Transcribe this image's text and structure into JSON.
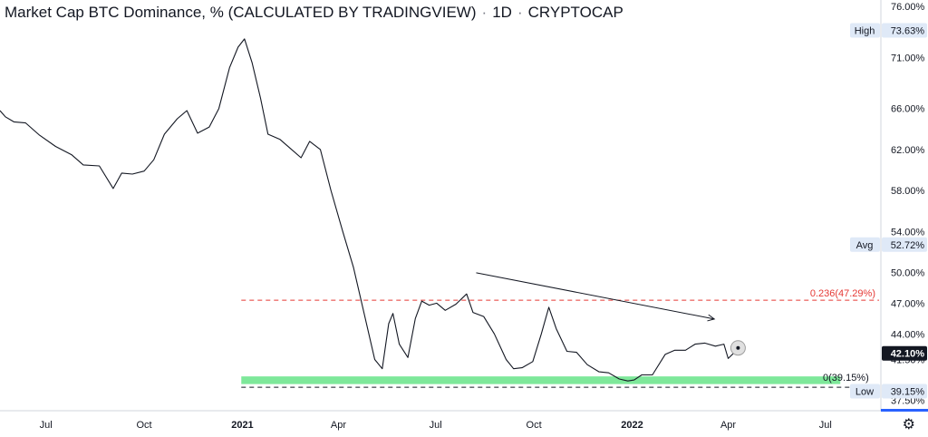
{
  "header": {
    "title": "Market Cap BTC Dominance, % (CALCULATED BY TRADINGVIEW)",
    "interval": "1D",
    "source": "CRYPTOCAP"
  },
  "settings_icon": "gear-icon",
  "colors": {
    "price_line": "#131722",
    "fib_line": "#e53935",
    "support_band": "#7ee89a",
    "low_dash": "#131722",
    "trendline": "#131722",
    "badge_bg": "#dfe9f7",
    "last_price_bg": "#131722",
    "last_price_text": "#ffffff",
    "axis_bottom_accent": "#2962ff"
  },
  "chart_data": {
    "type": "line",
    "title": "Market Cap BTC Dominance, % (CALCULATED BY TRADINGVIEW)",
    "xlabel": "",
    "ylabel": "",
    "xlim": [
      "2020-05-19",
      "2022-08-22"
    ],
    "ylim": [
      36.5,
      76.6
    ],
    "y_ticks": [
      "76.00%",
      "71.00%",
      "66.00%",
      "62.00%",
      "58.00%",
      "54.00%",
      "50.00%",
      "47.00%",
      "44.00%",
      "41.50%",
      "37.50%"
    ],
    "x_ticks": [
      {
        "date": "2020-07-01",
        "label": "Jul"
      },
      {
        "date": "2020-10-01",
        "label": "Oct"
      },
      {
        "date": "2021-01-01",
        "label": "2021"
      },
      {
        "date": "2021-04-01",
        "label": "Apr"
      },
      {
        "date": "2021-07-01",
        "label": "Jul"
      },
      {
        "date": "2021-10-01",
        "label": "Oct"
      },
      {
        "date": "2022-01-01",
        "label": "2022"
      },
      {
        "date": "2022-04-01",
        "label": "Apr"
      },
      {
        "date": "2022-07-01",
        "label": "Jul"
      }
    ],
    "series": [
      {
        "x": [
          "2020-05-19",
          "2020-05-24",
          "2020-06-01",
          "2020-06-12",
          "2020-06-25",
          "2020-07-10",
          "2020-07-25",
          "2020-08-05",
          "2020-08-20",
          "2020-09-02",
          "2020-09-10",
          "2020-09-20",
          "2020-10-01",
          "2020-10-10",
          "2020-10-20",
          "2020-11-01",
          "2020-11-10",
          "2020-11-20",
          "2020-12-01",
          "2020-12-10",
          "2020-12-20",
          "2020-12-28",
          "2021-01-03",
          "2021-01-10",
          "2021-01-18",
          "2021-01-25",
          "2021-02-05",
          "2021-02-15",
          "2021-02-25",
          "2021-03-05",
          "2021-03-15",
          "2021-03-25",
          "2021-04-05",
          "2021-04-15",
          "2021-04-25",
          "2021-05-05",
          "2021-05-12",
          "2021-05-18",
          "2021-05-22",
          "2021-05-28",
          "2021-06-05",
          "2021-06-12",
          "2021-06-18",
          "2021-06-25",
          "2021-07-02",
          "2021-07-10",
          "2021-07-20",
          "2021-07-30",
          "2021-08-05",
          "2021-08-15",
          "2021-08-25",
          "2021-09-05",
          "2021-09-12",
          "2021-09-20",
          "2021-09-30",
          "2021-10-08",
          "2021-10-15",
          "2021-10-22",
          "2021-11-01",
          "2021-11-10",
          "2021-11-20",
          "2021-12-01",
          "2021-12-10",
          "2021-12-20",
          "2021-12-28",
          "2022-01-03",
          "2022-01-10",
          "2022-01-20",
          "2022-02-01",
          "2022-02-10",
          "2022-02-20",
          "2022-03-01",
          "2022-03-10",
          "2022-03-20",
          "2022-03-28",
          "2022-04-01",
          "2022-04-06"
        ],
        "values": [
          65.8,
          65.2,
          64.7,
          64.6,
          63.4,
          62.3,
          61.5,
          60.5,
          60.4,
          58.2,
          59.7,
          59.6,
          59.9,
          61.0,
          63.5,
          65.0,
          65.8,
          63.6,
          64.2,
          66.0,
          70.0,
          72.0,
          72.8,
          70.5,
          67.0,
          63.5,
          63.0,
          62.1,
          61.2,
          62.8,
          62.0,
          58.0,
          54.0,
          50.5,
          46.0,
          41.5,
          40.6,
          45.0,
          46.0,
          43.0,
          41.7,
          45.5,
          47.2,
          46.8,
          47.0,
          46.3,
          46.9,
          47.9,
          46.1,
          45.7,
          44.0,
          41.5,
          40.6,
          40.7,
          41.3,
          44.0,
          46.6,
          44.5,
          42.3,
          42.2,
          41.0,
          40.3,
          40.2,
          39.6,
          39.4,
          39.5,
          40.0,
          40.0,
          42.0,
          42.4,
          42.4,
          43.0,
          43.1,
          42.8,
          43.0,
          41.6,
          42.1
        ]
      }
    ],
    "annotations": {
      "high": {
        "label": "High",
        "value": "73.63%"
      },
      "avg": {
        "label": "Avg",
        "value": "52.72%"
      },
      "low": {
        "label": "Low",
        "value": "39.15%"
      },
      "last": {
        "value": "42.10%"
      },
      "fib_0236": {
        "text": "0.236(47.29%)",
        "y": 47.29,
        "from": "2020-12-31"
      },
      "fib_0": {
        "text": "0(39.15%)",
        "y": 39.15,
        "from": "2020-12-31"
      },
      "support_band": {
        "y_low": 39.1,
        "y_high": 39.85,
        "from": "2020-12-31",
        "to": "2022-07-15"
      },
      "trendline": {
        "x1": "2021-08-08",
        "y1": 49.97,
        "x2": "2022-03-19",
        "y2": 45.45
      }
    }
  }
}
